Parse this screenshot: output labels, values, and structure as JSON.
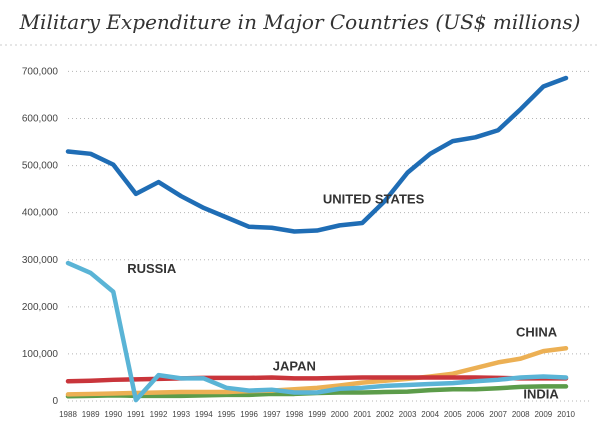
{
  "chart_data": {
    "type": "line",
    "title": "Military Expenditure in Major Countries (US$ millions)",
    "xlabel": "",
    "ylabel": "",
    "x": [
      1988,
      1989,
      1990,
      1991,
      1992,
      1993,
      1994,
      1995,
      1996,
      1997,
      1998,
      1999,
      2000,
      2001,
      2002,
      2003,
      2004,
      2005,
      2006,
      2007,
      2008,
      2009,
      2010
    ],
    "x_tick_labels": [
      "1988",
      "1989",
      "1990",
      "1991",
      "1992",
      "1993",
      "1994",
      "1995",
      "1996",
      "1997",
      "1998",
      "1999",
      "2000",
      "2001",
      "2002",
      "2003",
      "2004",
      "2005",
      "2006",
      "2007",
      "2008",
      "2009",
      "2010"
    ],
    "y_ticks": [
      0,
      100000,
      200000,
      300000,
      400000,
      500000,
      600000,
      700000
    ],
    "y_tick_labels": [
      "0",
      "100,000",
      "200,000",
      "300,000",
      "400,000",
      "500,000",
      "600,000",
      "700,000"
    ],
    "xlim": [
      1988,
      2010
    ],
    "ylim": [
      0,
      720000
    ],
    "grid": "horizontal-dotted",
    "legend": "inline-labels",
    "series": [
      {
        "name": "UNITED STATES",
        "color": "#1f6db5",
        "values": [
          530000,
          525000,
          502000,
          440000,
          465000,
          435000,
          410000,
          390000,
          370000,
          368000,
          360000,
          362000,
          373000,
          378000,
          425000,
          485000,
          525000,
          552000,
          560000,
          575000,
          620000,
          668000,
          686000
        ]
      },
      {
        "name": "RUSSIA",
        "color": "#5ab4d6",
        "values": [
          293000,
          272000,
          232000,
          2000,
          55000,
          48000,
          48000,
          28000,
          22000,
          24000,
          18000,
          18000,
          26000,
          28000,
          32000,
          34000,
          36000,
          38000,
          42000,
          45000,
          50000,
          52000,
          50000
        ]
      },
      {
        "name": "CHINA",
        "color": "#ecb054",
        "values": [
          14000,
          15000,
          16000,
          17000,
          18000,
          19000,
          19000,
          19000,
          21000,
          22000,
          25000,
          28000,
          33000,
          39000,
          43000,
          47000,
          52000,
          58000,
          70000,
          82000,
          90000,
          106000,
          112000
        ]
      },
      {
        "name": "JAPAN",
        "color": "#c9353b",
        "values": [
          42000,
          43000,
          45000,
          46000,
          47000,
          48000,
          49000,
          49000,
          49000,
          50000,
          48000,
          48000,
          49000,
          50000,
          50000,
          50000,
          50000,
          50000,
          50000,
          49000,
          48000,
          48000,
          48000
        ]
      },
      {
        "name": "INDIA",
        "color": "#5c9c4a",
        "values": [
          10000,
          11000,
          12000,
          11000,
          11000,
          11000,
          12000,
          13000,
          13000,
          15000,
          15000,
          17000,
          18000,
          18000,
          19000,
          20000,
          23000,
          25000,
          25000,
          27000,
          30000,
          31000,
          31000
        ]
      }
    ],
    "labels": [
      {
        "text": "UNITED STATES",
        "x": 2001.5,
        "y": 420000
      },
      {
        "text": "RUSSIA",
        "x": 1991.7,
        "y": 272000
      },
      {
        "text": "CHINA",
        "x": 2008.7,
        "y": 137000
      },
      {
        "text": "JAPAN",
        "x": 1998.0,
        "y": 65000
      },
      {
        "text": "INDIA",
        "x": 2008.9,
        "y": 5000
      }
    ]
  }
}
